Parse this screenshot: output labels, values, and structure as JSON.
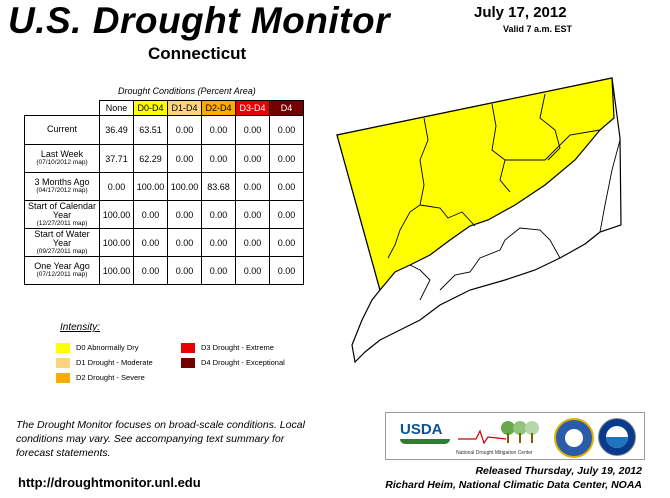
{
  "header": {
    "title": "U.S. Drought Monitor",
    "state": "Connecticut",
    "date": "July 17, 2012",
    "valid": "Valid 7 a.m. EST"
  },
  "table": {
    "caption": "Drought Conditions (Percent Area)",
    "columns": [
      "None",
      "D0-D4",
      "D1-D4",
      "D2-D4",
      "D3-D4",
      "D4"
    ],
    "column_colors": [
      "#ffffff",
      "#ffff00",
      "#fcd37f",
      "#ffaa00",
      "#e60000",
      "#730000"
    ],
    "rows": [
      {
        "label": "Current",
        "sub": "",
        "values": [
          "36.49",
          "63.51",
          "0.00",
          "0.00",
          "0.00",
          "0.00"
        ]
      },
      {
        "label": "Last Week",
        "sub": "(07/10/2012 map)",
        "values": [
          "37.71",
          "62.29",
          "0.00",
          "0.00",
          "0.00",
          "0.00"
        ]
      },
      {
        "label": "3 Months Ago",
        "sub": "(04/17/2012 map)",
        "values": [
          "0.00",
          "100.00",
          "100.00",
          "83.68",
          "0.00",
          "0.00"
        ]
      },
      {
        "label": "Start of Calendar Year",
        "sub": "(12/27/2011 map)",
        "values": [
          "100.00",
          "0.00",
          "0.00",
          "0.00",
          "0.00",
          "0.00"
        ]
      },
      {
        "label": "Start of Water Year",
        "sub": "(09/27/2011 map)",
        "values": [
          "100.00",
          "0.00",
          "0.00",
          "0.00",
          "0.00",
          "0.00"
        ]
      },
      {
        "label": "One Year Ago",
        "sub": "(07/12/2011 map)",
        "values": [
          "100.00",
          "0.00",
          "0.00",
          "0.00",
          "0.00",
          "0.00"
        ]
      }
    ]
  },
  "legend": {
    "title": "Intensity:",
    "items": [
      {
        "label": "D0 Abnormally Dry",
        "color": "#ffff00"
      },
      {
        "label": "D1 Drought - Moderate",
        "color": "#fcd37f"
      },
      {
        "label": "D2 Drought - Severe",
        "color": "#ffaa00"
      },
      {
        "label": "D3 Drought - Extreme",
        "color": "#e60000"
      },
      {
        "label": "D4 Drought - Exceptional",
        "color": "#730000"
      }
    ]
  },
  "note": "The Drought Monitor focuses on broad-scale conditions. Local conditions may vary. See accompanying text summary for forecast statements.",
  "url": "http://droughtmonitor.unl.edu",
  "release": {
    "line1": "Released Thursday, July 19, 2012",
    "line2": "Richard Heim, National Climatic Data Center, NOAA"
  },
  "logos": {
    "usda": "USDA",
    "ndmc": "National Drought Mitigation Center"
  },
  "map": {
    "d0_color": "#ffff00",
    "none_color": "#ffffff"
  }
}
